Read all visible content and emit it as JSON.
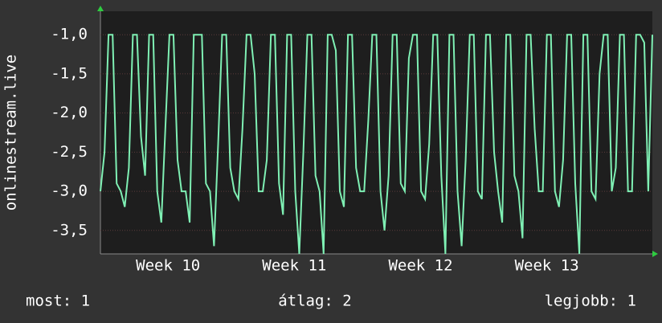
{
  "chart_data": {
    "type": "line",
    "y_label": "onlinestream.live",
    "color": "#7ff0b4",
    "values": [
      -3,
      -2.5,
      -1,
      -1,
      -2.9,
      -3,
      -3.2,
      -2.7,
      -1,
      -1,
      -2.3,
      -2.8,
      -1,
      -1,
      -3,
      -3.4,
      -2.2,
      -1,
      -1,
      -2.6,
      -3,
      -3,
      -3.4,
      -1,
      -1,
      -1,
      -2.9,
      -3,
      -3.7,
      -2.4,
      -1,
      -1,
      -2.7,
      -3,
      -3.1,
      -2.2,
      -1,
      -1,
      -1.5,
      -3,
      -3,
      -2.6,
      -1,
      -1,
      -2.9,
      -3.3,
      -1,
      -1,
      -3,
      -3.8,
      -2.5,
      -1,
      -1,
      -2.8,
      -3,
      -3.8,
      -1,
      -1,
      -1.2,
      -3,
      -3.2,
      -1,
      -1,
      -2.7,
      -3,
      -3,
      -2.1,
      -1,
      -1,
      -3,
      -3.5,
      -2.8,
      -1,
      -1,
      -2.9,
      -3,
      -1.3,
      -1,
      -1,
      -3,
      -3.1,
      -2.4,
      -1,
      -1,
      -2.8,
      -3.8,
      -1,
      -1,
      -3,
      -3.7,
      -2.6,
      -1,
      -1,
      -3,
      -3.1,
      -1,
      -1,
      -2.5,
      -3,
      -3.4,
      -1,
      -1,
      -2.8,
      -3,
      -3.6,
      -1,
      -1,
      -2.2,
      -3,
      -3,
      -1,
      -1,
      -3,
      -3.2,
      -2.6,
      -1,
      -1,
      -2.9,
      -3.8,
      -1,
      -1,
      -3,
      -3.1,
      -1.5,
      -1,
      -1,
      -3,
      -2.7,
      -1,
      -1,
      -3,
      -3,
      -1,
      -1,
      -1.1,
      -3,
      -1
    ],
    "xlim": [
      0,
      30.6
    ],
    "xticks": [
      {
        "value": 3.75,
        "label": "Week 10"
      },
      {
        "value": 10.75,
        "label": "Week 11"
      },
      {
        "value": 17.75,
        "label": "Week 12"
      },
      {
        "value": 24.75,
        "label": "Week 13"
      }
    ],
    "ylim": [
      -3.8,
      -0.7
    ],
    "yticks": [
      {
        "value": -3.5,
        "label": "-3,5"
      },
      {
        "value": -3,
        "label": "-3,0"
      },
      {
        "value": -2.5,
        "label": "-2,5"
      },
      {
        "value": -2,
        "label": "-2,0"
      },
      {
        "value": -1.5,
        "label": "-1,5"
      },
      {
        "value": -1,
        "label": "-1,0"
      }
    ],
    "grid": true,
    "footer": [
      "most: 1",
      "átlag: 2",
      "legjobb: 1"
    ]
  }
}
